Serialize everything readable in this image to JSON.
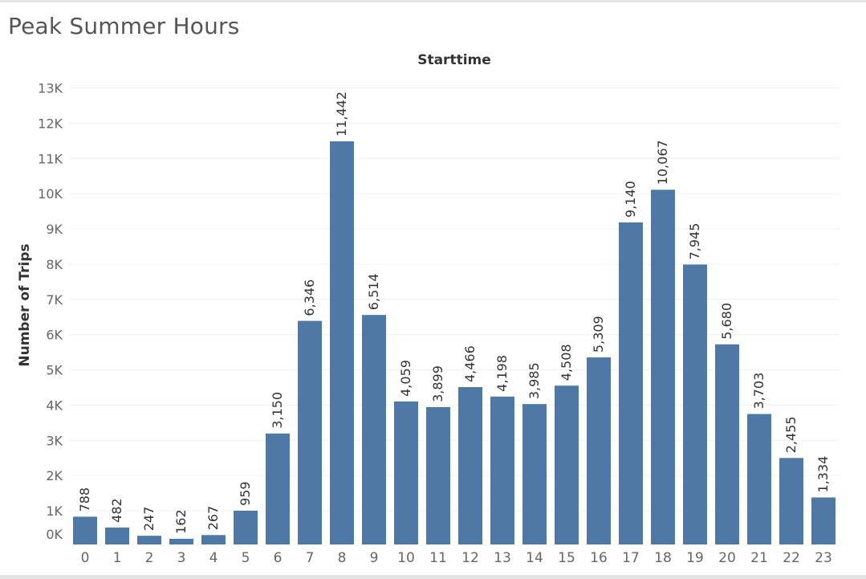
{
  "chart_data": {
    "type": "bar",
    "title": "Peak Summer Hours",
    "xlabel": "Starttime",
    "ylabel": "Number of Trips",
    "categories": [
      "0",
      "1",
      "2",
      "3",
      "4",
      "5",
      "6",
      "7",
      "8",
      "9",
      "10",
      "11",
      "12",
      "13",
      "14",
      "15",
      "16",
      "17",
      "18",
      "19",
      "20",
      "21",
      "22",
      "23"
    ],
    "values": [
      788,
      482,
      247,
      162,
      267,
      959,
      3150,
      6346,
      11442,
      6514,
      4059,
      3899,
      4466,
      4198,
      3985,
      4508,
      5309,
      9140,
      10067,
      7945,
      5680,
      3703,
      2455,
      1334
    ],
    "data_labels": [
      "788",
      "482",
      "247",
      "162",
      "267",
      "959",
      "3,150",
      "6,346",
      "11,442",
      "6,514",
      "4,059",
      "3,899",
      "4,466",
      "4,198",
      "3,985",
      "4,508",
      "5,309",
      "9,140",
      "10,067",
      "7,945",
      "5,680",
      "3,703",
      "2,455",
      "1,334"
    ],
    "yticks": [
      0,
      1000,
      2000,
      3000,
      4000,
      5000,
      6000,
      7000,
      8000,
      9000,
      10000,
      11000,
      12000,
      13000
    ],
    "ytick_labels": [
      "0K",
      "1K",
      "2K",
      "3K",
      "4K",
      "5K",
      "6K",
      "7K",
      "8K",
      "9K",
      "10K",
      "11K",
      "12K",
      "13K"
    ],
    "ylim": [
      0,
      13000
    ],
    "grid": true,
    "legend": "none",
    "bar_color": "#4e79a7"
  }
}
